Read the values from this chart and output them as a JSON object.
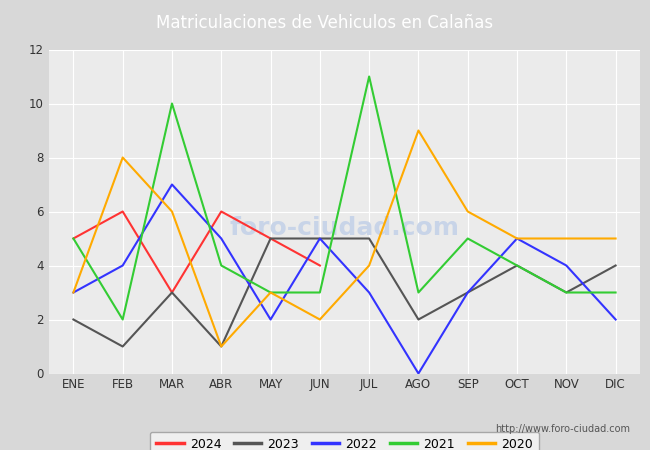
{
  "title": "Matriculaciones de Vehiculos en Calañas",
  "months": [
    "ENE",
    "FEB",
    "MAR",
    "ABR",
    "MAY",
    "JUN",
    "JUL",
    "AGO",
    "SEP",
    "OCT",
    "NOV",
    "DIC"
  ],
  "series": {
    "2024": {
      "values": [
        5,
        6,
        3,
        6,
        5,
        4,
        null,
        null,
        null,
        null,
        null,
        null
      ],
      "color": "#ff3333",
      "linestyle": "-"
    },
    "2023": {
      "values": [
        2,
        1,
        3,
        1,
        5,
        5,
        5,
        2,
        3,
        4,
        3,
        4
      ],
      "color": "#555555",
      "linestyle": "-"
    },
    "2022": {
      "values": [
        3,
        4,
        7,
        5,
        2,
        5,
        3,
        0,
        3,
        5,
        4,
        2
      ],
      "color": "#3333ff",
      "linestyle": "-"
    },
    "2021": {
      "values": [
        5,
        2,
        10,
        4,
        3,
        3,
        11,
        3,
        5,
        4,
        3,
        3
      ],
      "color": "#33cc33",
      "linestyle": "-"
    },
    "2020": {
      "values": [
        3,
        8,
        6,
        1,
        3,
        2,
        4,
        9,
        6,
        5,
        5,
        5
      ],
      "color": "#ffaa00",
      "linestyle": "-"
    }
  },
  "ylim": [
    0,
    12
  ],
  "yticks": [
    0,
    2,
    4,
    6,
    8,
    10,
    12
  ],
  "title_fontsize": 12,
  "axis_label_fontsize": 8.5,
  "legend_order": [
    "2024",
    "2023",
    "2022",
    "2021",
    "2020"
  ],
  "outer_bg_color": "#d8d8d8",
  "plot_bg_color": "#ebebeb",
  "header_bg_color": "#4472c4",
  "header_text_color": "#ffffff",
  "footer_bg_color": "#4472c4",
  "watermark_text": "foro-ciudad.com",
  "watermark_color": "#c8d4e8",
  "url_text": "http://www.foro-ciudad.com",
  "url_color": "#555555",
  "linewidth": 1.5,
  "grid_color": "#ffffff",
  "legend_border_color": "#999999"
}
